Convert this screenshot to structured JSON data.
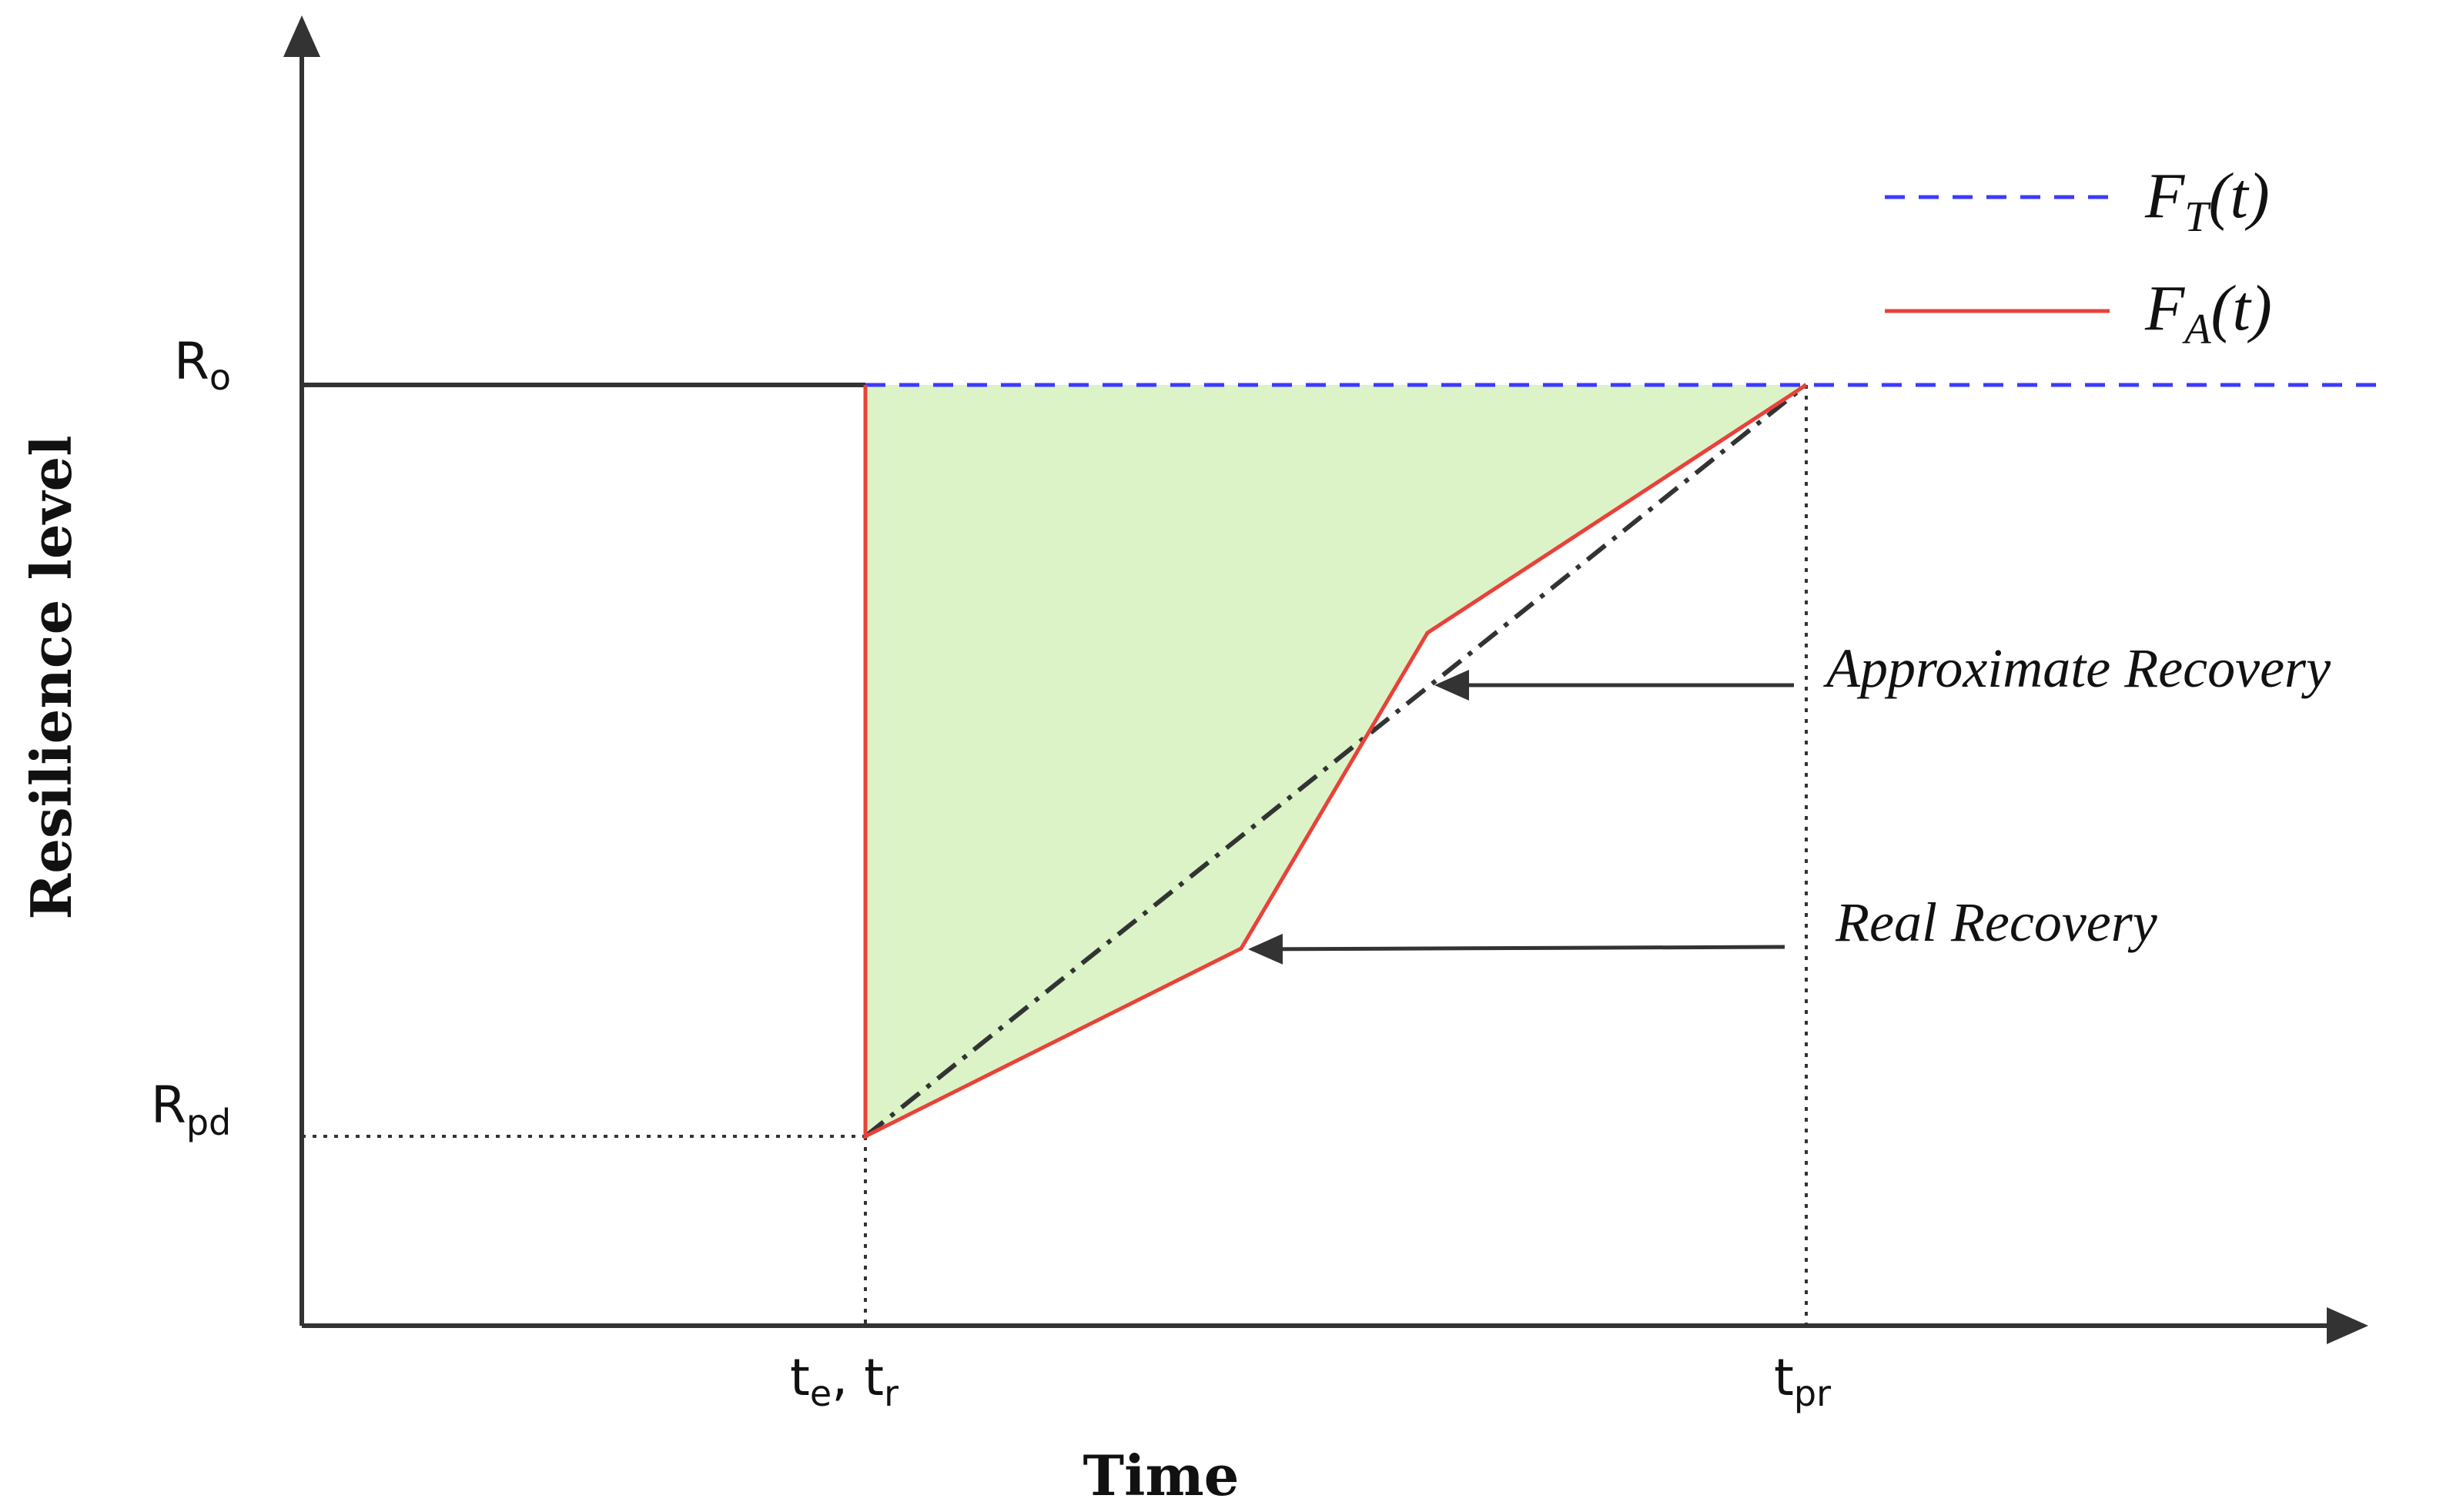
{
  "axes": {
    "x_title": "Time",
    "y_title": "Resilience level"
  },
  "y_ticks": {
    "ro": {
      "main": "R",
      "sub": "o"
    },
    "rpd": {
      "main": "R",
      "sub": "pd"
    }
  },
  "x_ticks": {
    "te_tr": {
      "main1": "t",
      "sub1": "e",
      "sep": ", ",
      "main2": "t",
      "sub2": "r"
    },
    "tpr": {
      "main": "t",
      "sub": "pr"
    }
  },
  "legend": {
    "target": {
      "f": "F",
      "sub": "T",
      "args": "(t)",
      "color": "#3b3bff"
    },
    "actual": {
      "f": "F",
      "sub": "A",
      "args": "(t)",
      "color": "#e8423a"
    }
  },
  "annotations": {
    "approximate": "Approximate Recovery",
    "real": "Real Recovery"
  },
  "colors": {
    "axis": "#333333",
    "fill": "#dbf3c7",
    "approx_line": "#333333"
  }
}
